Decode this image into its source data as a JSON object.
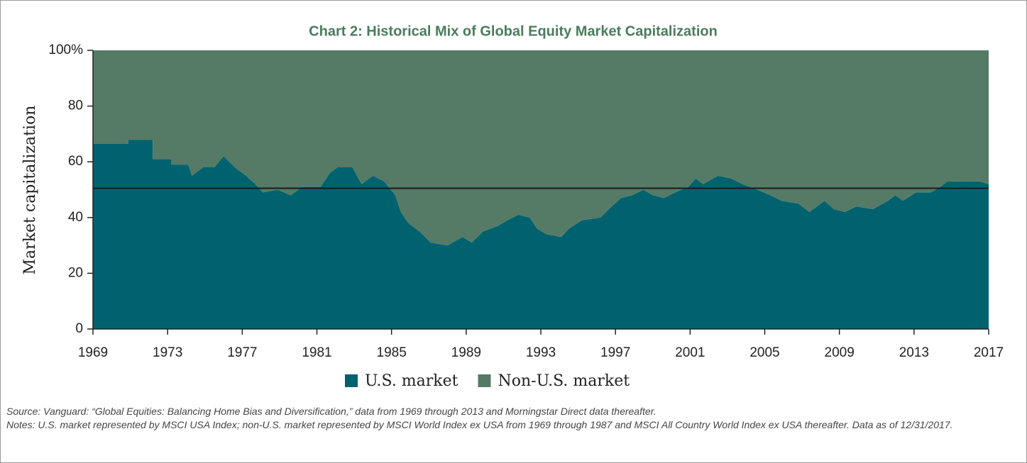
{
  "chart_data": {
    "type": "stacked_area",
    "title": "Chart 2: Historical Mix of Global Equity Market Capitalization",
    "y_label": "Market capitalization",
    "x": [
      1969,
      1970.9,
      1970.9,
      1972.2,
      1972.2,
      1973.2,
      1973.2,
      1974.1,
      1974.3,
      1974.9,
      1975.5,
      1976,
      1976.6,
      1977.2,
      1977.7,
      1978.1,
      1978.9,
      1979.6,
      1980.2,
      1981.2,
      1981.7,
      1982.1,
      1982.9,
      1983.4,
      1984,
      1984.6,
      1985.2,
      1985.5,
      1985.9,
      1986.5,
      1987.1,
      1988,
      1988.8,
      1989.3,
      1989.9,
      1990.7,
      1991.2,
      1991.8,
      1992.4,
      1992.8,
      1993.3,
      1994.1,
      1994.5,
      1995.2,
      1996.2,
      1996.8,
      1997.3,
      1997.9,
      1998.5,
      1999,
      1999.6,
      2000.2,
      2000.9,
      2001.3,
      2001.7,
      2002.5,
      2003.2,
      2003.8,
      2004.6,
      2005.3,
      2005.9,
      2006.8,
      2007.4,
      2008.2,
      2008.7,
      2009.3,
      2009.9,
      2010.8,
      2011.6,
      2012,
      2012.4,
      2013.1,
      2013.9,
      2014.4,
      2014.8,
      2015.8,
      2016.5,
      2017
    ],
    "series": [
      {
        "name": "U.S. market",
        "color": "#00626f",
        "values": [
          66.5,
          66.5,
          67.8,
          67.8,
          61,
          61,
          59,
          59,
          55,
          58,
          58,
          62,
          58,
          55,
          52,
          49,
          50,
          48,
          51,
          51,
          56,
          58,
          58,
          52,
          55,
          53,
          48,
          42,
          38,
          35,
          31,
          30,
          33,
          31,
          35,
          37,
          39,
          41,
          40,
          36,
          34,
          33,
          36,
          39,
          40,
          44,
          47,
          48,
          50,
          48,
          47,
          49,
          51,
          54,
          52,
          55,
          54,
          52,
          50,
          48,
          46,
          45,
          42,
          46,
          43,
          42,
          44,
          43,
          46,
          48,
          46,
          49,
          49,
          51,
          53,
          53,
          53,
          52
        ]
      },
      {
        "name": "Non-U.S. market",
        "color": "#557a66",
        "values": [
          33.5,
          33.5,
          32.2,
          32.2,
          39,
          39,
          41,
          41,
          45,
          42,
          42,
          38,
          42,
          45,
          48,
          51,
          50,
          52,
          49,
          49,
          44,
          42,
          42,
          48,
          45,
          47,
          52,
          58,
          62,
          65,
          69,
          70,
          67,
          69,
          65,
          63,
          61,
          59,
          60,
          64,
          66,
          67,
          64,
          61,
          60,
          56,
          53,
          52,
          50,
          52,
          53,
          51,
          49,
          46,
          48,
          45,
          46,
          48,
          50,
          52,
          54,
          55,
          58,
          54,
          57,
          58,
          56,
          57,
          54,
          52,
          54,
          51,
          51,
          49,
          47,
          47,
          47,
          48
        ]
      }
    ],
    "reference_line": 50.5,
    "xlim": [
      1969,
      2017
    ],
    "xticks": [
      1969,
      1973,
      1977,
      1981,
      1985,
      1989,
      1993,
      1997,
      2001,
      2005,
      2009,
      2013,
      2017
    ],
    "ylim": [
      0,
      100
    ],
    "yticks": [
      0,
      20,
      40,
      60,
      80,
      {
        "value": 100,
        "label": "100%"
      }
    ],
    "legend": "bottom",
    "source": "Source: Vanguard: “Global Equities: Balancing Home Bias and Diversification,” data from 1969 through 2013 and Morningstar Direct data thereafter.",
    "notes": "Notes: U.S. market represented by MSCI USA Index; non-U.S. market represented by MSCI World Index ex USA from 1969 through 1987 and MSCI All Country World Index ex USA thereafter. Data as of 12/31/2017."
  }
}
